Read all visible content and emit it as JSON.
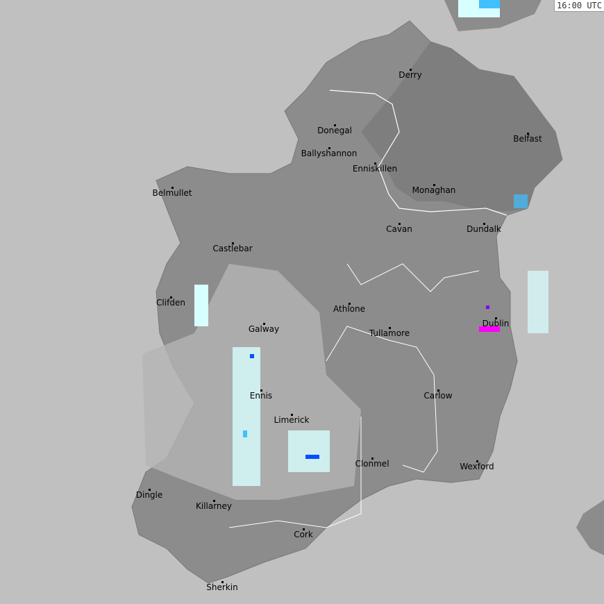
{
  "timestamp": "16:00 UTC",
  "colors": {
    "sea": "#c0c0c0",
    "land": "#8c8c8c",
    "north": "#7e7e7e",
    "border": "#ffffff",
    "rain_light": "#d8ffff",
    "rain_mid": "#40c0ff",
    "rain_heavy": "#0050ff",
    "rain_extreme": "#ff00ff"
  },
  "cities": [
    "Derry",
    "Donegal",
    "Belfast",
    "Ballyshannon",
    "Enniskillen",
    "Belmullet",
    "Monaghan",
    "Cavan",
    "Dundalk",
    "Castlebar",
    "Clifden",
    "Athlone",
    "Galway",
    "Dublin",
    "Tullamore",
    "Ennis",
    "Carlow",
    "Limerick",
    "Clonmel",
    "Wexford",
    "Dingle",
    "Killarney",
    "Cork",
    "Sherkin"
  ]
}
